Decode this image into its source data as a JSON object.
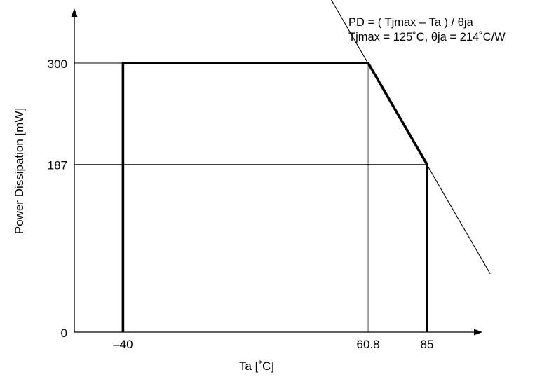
{
  "chart_data": {
    "type": "line",
    "title": "",
    "xlabel": "Ta [˚C]",
    "ylabel": "Power Dissipation [mW]",
    "xlim": [
      -60,
      100
    ],
    "ylim": [
      0,
      330
    ],
    "x_ticks": [
      {
        "value": -40,
        "label": "–40"
      },
      {
        "value": 60.8,
        "label": "60.8"
      },
      {
        "value": 85,
        "label": "85"
      }
    ],
    "y_ticks": [
      {
        "value": 0,
        "label": "0"
      },
      {
        "value": 187,
        "label": "187"
      },
      {
        "value": 300,
        "label": "300"
      }
    ],
    "series": [
      {
        "x": [
          -40,
          -40,
          60.8,
          85,
          85
        ],
        "y": [
          0,
          300,
          300,
          187,
          0
        ],
        "color": "#000000"
      }
    ],
    "derating_line": {
      "x": [
        40.6,
        111.0
      ],
      "y": [
        394.0,
        65.0
      ]
    },
    "annotations": [
      "PD = ( Tjmax – Ta ) / θja",
      "Tjmax = 125˚C, θja = 214˚C/W"
    ],
    "grid": false
  }
}
